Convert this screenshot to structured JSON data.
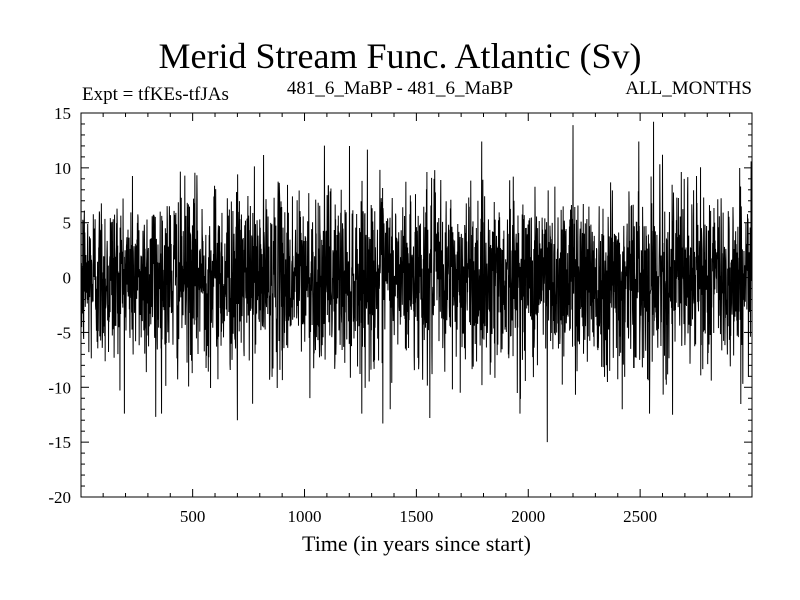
{
  "chart_data": {
    "type": "line",
    "title": "Merid Stream Func. Atlantic (Sv)",
    "subtitle_left": "Expt = tfKEs-tfJAs",
    "subtitle_center": "481_6_MaBP - 481_6_MaBP",
    "subtitle_right": "ALL_MONTHS",
    "xlabel": "Time (in years since start)",
    "ylabel": "",
    "xlim": [
      1,
      3000
    ],
    "ylim": [
      -20,
      15
    ],
    "xticks": [
      500,
      1000,
      1500,
      2000,
      2500
    ],
    "yticks": [
      -20,
      -15,
      -10,
      -5,
      0,
      5,
      10,
      15
    ],
    "grid": false,
    "series": [
      {
        "color": "#000000",
        "n_points": 3000,
        "mean": 0,
        "approx_std": 4,
        "extremes": [
          {
            "x": 335,
            "y": -12.7
          },
          {
            "x": 700,
            "y": -13.0
          },
          {
            "x": 1350,
            "y": -13.3
          },
          {
            "x": 1560,
            "y": -12.8
          },
          {
            "x": 2085,
            "y": -15.0
          },
          {
            "x": 2200,
            "y": 13.9
          },
          {
            "x": 2560,
            "y": 14.2
          },
          {
            "x": 2420,
            "y": -12.0
          },
          {
            "x": 2645,
            "y": -12.5
          },
          {
            "x": 2600,
            "y": 11.2
          }
        ]
      }
    ]
  }
}
